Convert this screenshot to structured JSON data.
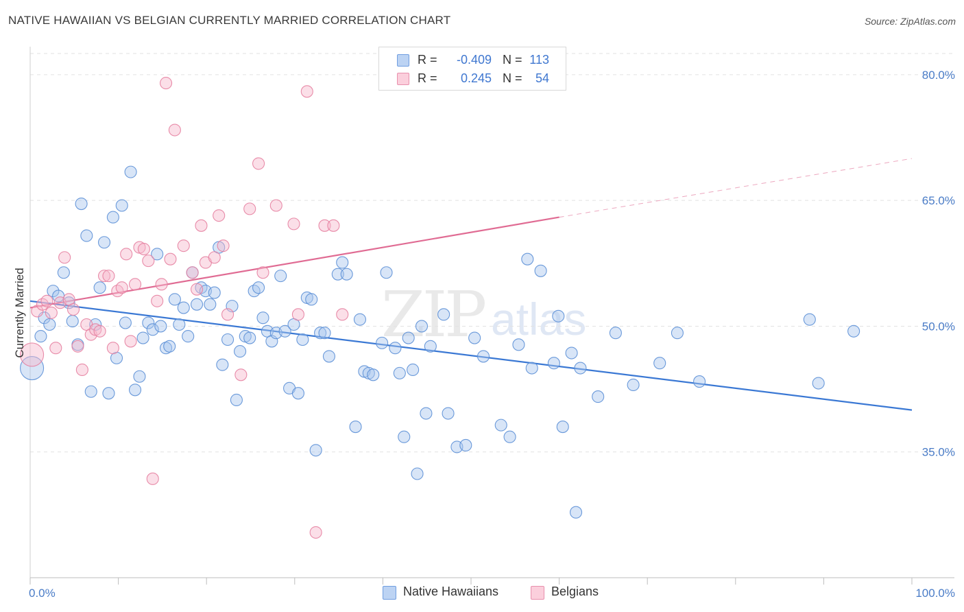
{
  "header": {
    "title": "NATIVE HAWAIIAN VS BELGIAN CURRENTLY MARRIED CORRELATION CHART",
    "source": "Source: ZipAtlas.com"
  },
  "watermark": {
    "zip": "ZIP",
    "atlas": "atlas"
  },
  "legend_top": {
    "rows": [
      {
        "r_label": "R =",
        "r_value": "-0.409",
        "n_label": "N =",
        "n_value": "113",
        "color": "#a9c6ee"
      },
      {
        "r_label": "R =",
        "r_value": "0.245",
        "n_label": "N =",
        "n_value": "54",
        "color": "#f7b9cc"
      }
    ]
  },
  "legend_bottom": {
    "items": [
      {
        "label": "Native Hawaiians",
        "color": "#a9c6ee"
      },
      {
        "label": "Belgians",
        "color": "#f7b9cc"
      }
    ]
  },
  "chart_data": {
    "type": "scatter",
    "ylabel": "Currently Married",
    "xlabel": "",
    "xlim": [
      0,
      100
    ],
    "ylim": [
      20,
      84
    ],
    "y_ticks": [
      {
        "value": 35,
        "label": "35.0%"
      },
      {
        "value": 50,
        "label": "50.0%"
      },
      {
        "value": 65,
        "label": "65.0%"
      },
      {
        "value": 80,
        "label": "80.0%"
      }
    ],
    "x_tick_labels": [
      {
        "value": 0,
        "label": "0.0%"
      },
      {
        "value": 100,
        "label": "100.0%"
      }
    ],
    "grid": true,
    "series": [
      {
        "name": "Native Hawaiians",
        "color": "#a9c6ee",
        "stroke": "#5b8fd6",
        "trend": {
          "x0": 0,
          "y0": 53.0,
          "x1": 100,
          "y1": 40.0,
          "color": "#3a78d4"
        },
        "points": [
          [
            0.2,
            45.0
          ],
          [
            1.2,
            48.8
          ],
          [
            1.6,
            51.0
          ],
          [
            2.2,
            50.2
          ],
          [
            2.6,
            54.2
          ],
          [
            3.2,
            53.6
          ],
          [
            3.8,
            56.4
          ],
          [
            4.4,
            52.8
          ],
          [
            4.8,
            50.6
          ],
          [
            5.4,
            47.8
          ],
          [
            5.8,
            64.6
          ],
          [
            6.4,
            60.8
          ],
          [
            6.9,
            42.2
          ],
          [
            7.4,
            50.2
          ],
          [
            7.9,
            54.6
          ],
          [
            8.4,
            60.0
          ],
          [
            8.9,
            42.0
          ],
          [
            9.4,
            63.0
          ],
          [
            9.8,
            46.2
          ],
          [
            10.4,
            64.4
          ],
          [
            10.8,
            50.4
          ],
          [
            11.4,
            68.4
          ],
          [
            11.9,
            42.4
          ],
          [
            12.4,
            44.0
          ],
          [
            12.8,
            48.6
          ],
          [
            13.4,
            50.4
          ],
          [
            13.9,
            49.6
          ],
          [
            14.4,
            58.6
          ],
          [
            14.8,
            50.0
          ],
          [
            15.4,
            47.4
          ],
          [
            15.8,
            47.6
          ],
          [
            16.4,
            53.2
          ],
          [
            16.9,
            50.2
          ],
          [
            17.4,
            52.2
          ],
          [
            17.9,
            48.8
          ],
          [
            18.4,
            56.4
          ],
          [
            18.9,
            52.6
          ],
          [
            19.4,
            54.6
          ],
          [
            19.9,
            54.2
          ],
          [
            20.4,
            52.6
          ],
          [
            20.9,
            54.0
          ],
          [
            21.4,
            59.4
          ],
          [
            21.8,
            45.4
          ],
          [
            22.4,
            48.4
          ],
          [
            22.9,
            52.4
          ],
          [
            23.4,
            41.2
          ],
          [
            23.8,
            47.0
          ],
          [
            24.4,
            48.8
          ],
          [
            24.9,
            48.6
          ],
          [
            25.4,
            54.2
          ],
          [
            25.9,
            54.6
          ],
          [
            26.4,
            51.0
          ],
          [
            26.9,
            49.4
          ],
          [
            27.4,
            48.2
          ],
          [
            27.9,
            49.2
          ],
          [
            28.4,
            56.0
          ],
          [
            28.9,
            49.4
          ],
          [
            29.4,
            42.6
          ],
          [
            29.9,
            50.2
          ],
          [
            30.4,
            42.0
          ],
          [
            30.9,
            48.4
          ],
          [
            31.4,
            53.4
          ],
          [
            31.9,
            53.2
          ],
          [
            32.4,
            35.2
          ],
          [
            32.9,
            49.2
          ],
          [
            33.4,
            49.2
          ],
          [
            33.9,
            46.4
          ],
          [
            34.9,
            56.2
          ],
          [
            35.4,
            57.6
          ],
          [
            35.9,
            56.2
          ],
          [
            36.9,
            38.0
          ],
          [
            37.4,
            50.8
          ],
          [
            37.9,
            44.6
          ],
          [
            38.4,
            44.4
          ],
          [
            38.9,
            44.2
          ],
          [
            39.9,
            48.0
          ],
          [
            40.4,
            56.4
          ],
          [
            41.4,
            47.4
          ],
          [
            41.9,
            44.4
          ],
          [
            42.4,
            36.8
          ],
          [
            42.9,
            48.6
          ],
          [
            43.4,
            44.8
          ],
          [
            43.9,
            32.4
          ],
          [
            44.4,
            50.0
          ],
          [
            44.9,
            39.6
          ],
          [
            45.4,
            47.6
          ],
          [
            46.9,
            51.4
          ],
          [
            47.4,
            39.6
          ],
          [
            48.4,
            35.6
          ],
          [
            49.4,
            35.8
          ],
          [
            50.4,
            48.6
          ],
          [
            51.4,
            46.4
          ],
          [
            53.4,
            38.2
          ],
          [
            54.4,
            36.8
          ],
          [
            55.4,
            47.8
          ],
          [
            56.4,
            58.0
          ],
          [
            56.9,
            45.0
          ],
          [
            57.9,
            56.6
          ],
          [
            59.4,
            45.6
          ],
          [
            59.9,
            51.2
          ],
          [
            60.4,
            38.0
          ],
          [
            61.4,
            46.8
          ],
          [
            61.9,
            27.8
          ],
          [
            62.4,
            45.0
          ],
          [
            64.4,
            41.6
          ],
          [
            66.4,
            49.2
          ],
          [
            68.4,
            43.0
          ],
          [
            71.4,
            45.6
          ],
          [
            73.4,
            49.2
          ],
          [
            75.9,
            43.4
          ],
          [
            88.4,
            50.8
          ],
          [
            89.4,
            43.2
          ],
          [
            93.4,
            49.4
          ]
        ]
      },
      {
        "name": "Belgians",
        "color": "#f7b9cc",
        "stroke": "#e57fa0",
        "trend": {
          "x0": 0,
          "y0": 52.2,
          "x1": 60,
          "y1": 63.0,
          "x2": 100,
          "y2": 70.0,
          "color": "#e06b93"
        },
        "points": [
          [
            0.2,
            46.6
          ],
          [
            0.8,
            51.8
          ],
          [
            1.4,
            52.6
          ],
          [
            1.9,
            53.0
          ],
          [
            2.4,
            51.6
          ],
          [
            2.9,
            47.4
          ],
          [
            3.4,
            52.8
          ],
          [
            3.9,
            58.2
          ],
          [
            4.4,
            53.2
          ],
          [
            4.9,
            52.0
          ],
          [
            5.4,
            47.6
          ],
          [
            5.9,
            44.8
          ],
          [
            6.4,
            50.2
          ],
          [
            6.9,
            49.0
          ],
          [
            7.4,
            49.6
          ],
          [
            7.9,
            49.4
          ],
          [
            8.4,
            56.0
          ],
          [
            8.9,
            56.0
          ],
          [
            9.4,
            47.4
          ],
          [
            9.9,
            54.2
          ],
          [
            10.4,
            54.6
          ],
          [
            10.9,
            58.6
          ],
          [
            11.4,
            48.2
          ],
          [
            11.9,
            55.0
          ],
          [
            12.4,
            59.4
          ],
          [
            12.9,
            59.2
          ],
          [
            13.4,
            57.8
          ],
          [
            13.9,
            31.8
          ],
          [
            14.4,
            53.0
          ],
          [
            14.9,
            55.0
          ],
          [
            15.4,
            79.0
          ],
          [
            15.9,
            58.0
          ],
          [
            16.4,
            73.4
          ],
          [
            17.4,
            59.6
          ],
          [
            18.4,
            56.4
          ],
          [
            18.9,
            54.4
          ],
          [
            19.4,
            62.0
          ],
          [
            19.9,
            57.6
          ],
          [
            20.9,
            58.2
          ],
          [
            21.4,
            63.2
          ],
          [
            21.9,
            59.6
          ],
          [
            22.4,
            51.4
          ],
          [
            23.9,
            44.2
          ],
          [
            24.9,
            64.0
          ],
          [
            25.9,
            69.4
          ],
          [
            26.4,
            56.4
          ],
          [
            27.9,
            64.4
          ],
          [
            29.9,
            62.2
          ],
          [
            30.4,
            51.4
          ],
          [
            31.4,
            78.0
          ],
          [
            32.4,
            25.4
          ],
          [
            33.4,
            62.0
          ],
          [
            34.4,
            62.0
          ],
          [
            35.4,
            51.4
          ]
        ]
      }
    ]
  }
}
